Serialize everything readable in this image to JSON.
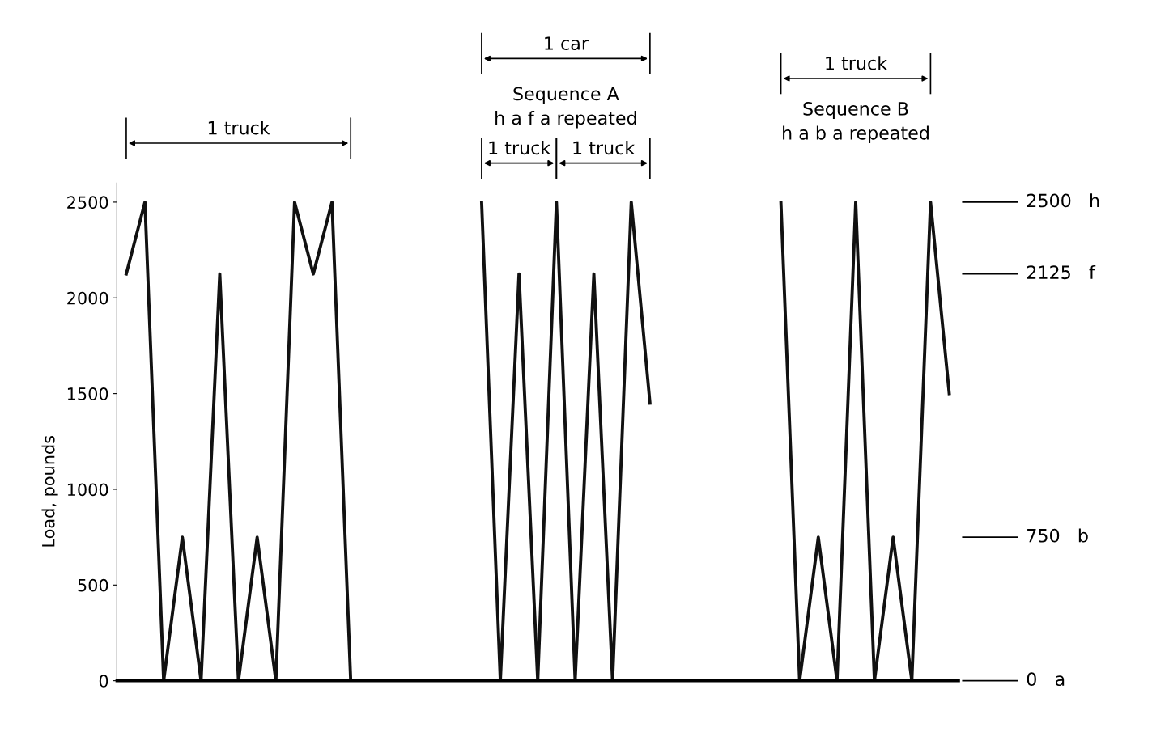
{
  "chart_data": {
    "type": "line",
    "ylabel": "Load, pounds",
    "ylim": [
      0,
      2600
    ],
    "yticks": [
      0,
      500,
      1000,
      1500,
      2000,
      2500
    ],
    "grid": false,
    "marker": "none",
    "line_style": "solid",
    "categories": [
      null,
      null,
      null,
      null,
      null,
      null,
      null,
      null,
      null,
      null,
      null,
      null,
      null,
      null,
      null,
      null,
      null,
      null,
      null,
      null,
      null,
      null,
      null,
      null,
      null,
      null,
      null,
      null,
      null,
      null,
      null,
      null,
      null,
      null,
      null,
      null,
      null,
      null,
      null,
      null,
      null,
      null,
      null,
      null,
      null
    ],
    "series": [
      {
        "color": "#111111",
        "values": [
          2125,
          2500,
          0,
          750,
          0,
          2125,
          0,
          750,
          0,
          2500,
          2125,
          2500,
          0,
          null,
          null,
          null,
          null,
          null,
          null,
          2500,
          0,
          2125,
          0,
          2500,
          0,
          2125,
          0,
          2500,
          1450,
          null,
          null,
          null,
          null,
          null,
          null,
          2500,
          0,
          750,
          0,
          2500,
          0,
          750,
          0,
          2500,
          1500
        ]
      }
    ],
    "annotations": [
      "1 truck",
      "1 car",
      "Sequence A\nh a f a repeated",
      "1 truck",
      "1 truck",
      "1 truck",
      "Sequence B\nh a b a repeated",
      "2500   h",
      "2125   f",
      "750   b",
      "0   a"
    ]
  }
}
